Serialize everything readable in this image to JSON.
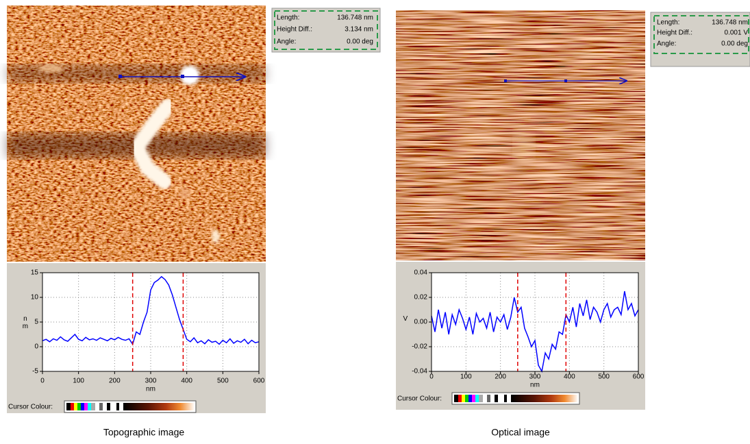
{
  "panels": [
    {
      "info": {
        "rows": [
          {
            "label": "Length:",
            "value": "136.748 nm"
          },
          {
            "label": "Height Diff.:",
            "value": "3.134 nm"
          },
          {
            "label": "Angle:",
            "value": "0.00 deg"
          }
        ]
      },
      "cursor_colour_label": "Cursor Colour:",
      "caption": "Topographic image"
    },
    {
      "info": {
        "rows": [
          {
            "label": "Length:",
            "value": "136.748 nm"
          },
          {
            "label": "Height Diff.:",
            "value": "0.001 V"
          },
          {
            "label": "Angle:",
            "value": "0.00 deg"
          }
        ]
      },
      "cursor_colour_label": "Cursor Colour:",
      "caption": "Optical image"
    }
  ],
  "chart_data": [
    {
      "type": "line",
      "xlabel": "nm",
      "ylabel": "nm",
      "color": "#0000ff",
      "grid": true,
      "x": [
        0,
        10,
        20,
        30,
        40,
        50,
        60,
        70,
        80,
        90,
        100,
        110,
        120,
        130,
        140,
        150,
        160,
        170,
        180,
        190,
        200,
        210,
        220,
        230,
        240,
        250,
        260,
        270,
        280,
        290,
        300,
        310,
        320,
        330,
        340,
        350,
        360,
        370,
        380,
        390,
        400,
        410,
        420,
        430,
        440,
        450,
        460,
        470,
        480,
        490,
        500,
        510,
        520,
        530,
        540,
        550,
        560,
        570,
        580,
        590,
        600
      ],
      "values": [
        1.2,
        1.5,
        1.0,
        1.6,
        1.3,
        2.0,
        1.4,
        1.1,
        1.8,
        2.5,
        1.5,
        1.2,
        1.9,
        1.4,
        1.6,
        1.3,
        1.8,
        1.5,
        1.2,
        1.7,
        1.4,
        1.9,
        1.5,
        1.3,
        1.6,
        0.5,
        3.0,
        2.5,
        5.0,
        7.0,
        11.5,
        13.0,
        13.5,
        14.2,
        13.6,
        12.5,
        10.5,
        8.0,
        5.5,
        3.5,
        1.5,
        1.0,
        1.8,
        0.8,
        1.2,
        0.6,
        1.4,
        0.9,
        1.1,
        0.5,
        1.3,
        0.8,
        1.6,
        0.7,
        1.2,
        0.9,
        1.5,
        0.6,
        1.3,
        0.8,
        1.0
      ],
      "xlim": [
        0,
        600
      ],
      "xticks": [
        0,
        100,
        200,
        300,
        400,
        500,
        600
      ],
      "ylim": [
        -5,
        15
      ],
      "yticks": [
        -5,
        0,
        5,
        10,
        15
      ],
      "cursors": {
        "color": "#e00000",
        "values": [
          250,
          390
        ]
      }
    },
    {
      "type": "line",
      "xlabel": "nm",
      "ylabel": "V",
      "color": "#0000ff",
      "grid": true,
      "x": [
        0,
        10,
        20,
        30,
        40,
        50,
        60,
        70,
        80,
        90,
        100,
        110,
        120,
        130,
        140,
        150,
        160,
        170,
        180,
        190,
        200,
        210,
        220,
        230,
        240,
        250,
        260,
        270,
        280,
        290,
        300,
        310,
        320,
        330,
        340,
        350,
        360,
        370,
        380,
        390,
        400,
        410,
        420,
        430,
        440,
        450,
        460,
        470,
        480,
        490,
        500,
        510,
        520,
        530,
        540,
        550,
        560,
        570,
        580,
        590,
        600
      ],
      "values": [
        0.005,
        -0.008,
        0.01,
        -0.005,
        0.008,
        -0.01,
        0.006,
        -0.002,
        0.01,
        0.003,
        -0.006,
        0.004,
        -0.01,
        0.007,
        0.0,
        0.003,
        -0.005,
        0.008,
        -0.008,
        0.004,
        0.0,
        0.006,
        -0.006,
        0.004,
        0.02,
        0.008,
        0.012,
        -0.005,
        -0.012,
        -0.02,
        -0.015,
        -0.035,
        -0.04,
        -0.025,
        -0.03,
        -0.018,
        -0.022,
        -0.008,
        -0.01,
        0.006,
        0.0,
        0.012,
        -0.004,
        0.015,
        0.005,
        0.018,
        0.002,
        0.012,
        0.008,
        0.0,
        0.01,
        0.015,
        0.004,
        0.01,
        0.012,
        0.006,
        0.025,
        0.01,
        0.015,
        0.005,
        0.01
      ],
      "xlim": [
        0,
        600
      ],
      "xticks": [
        0,
        100,
        200,
        300,
        400,
        500,
        600
      ],
      "ylim": [
        -0.04,
        0.04
      ],
      "yticks": [
        -0.04,
        -0.02,
        {
          "value": 0,
          "label": "0.00"
        },
        0.02,
        0.04
      ],
      "cursors": {
        "color": "#e00000",
        "values": [
          250,
          390
        ]
      }
    }
  ]
}
